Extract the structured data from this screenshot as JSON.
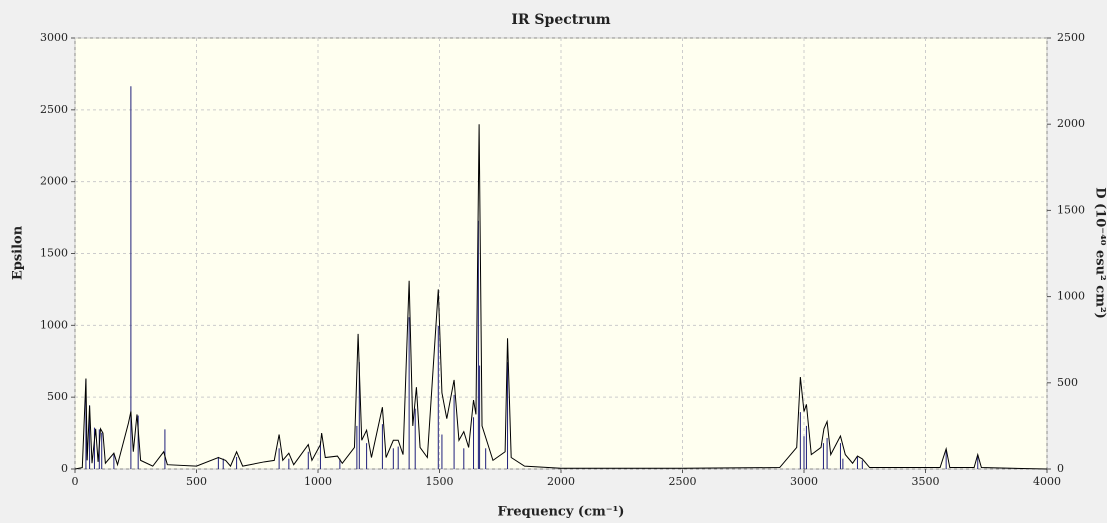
{
  "chart_data": {
    "type": "line",
    "title": "IR Spectrum",
    "x_label": "Frequency (cm⁻¹)",
    "y_label": "Epsilon",
    "y2_label": "D (10⁻⁴⁰ esu² cm²)",
    "xlim": [
      0,
      4000
    ],
    "xticks": [
      0,
      500,
      1000,
      1500,
      2000,
      2500,
      3000,
      3500,
      4000
    ],
    "ylim": [
      0,
      3000
    ],
    "yticks": [
      0,
      500,
      1000,
      1500,
      2000,
      2500,
      3000
    ],
    "y2lim": [
      0,
      2500
    ],
    "y2ticks": [
      0,
      500,
      1000,
      1500,
      2000,
      2500
    ],
    "grid": true,
    "series": [
      {
        "type": "line",
        "color": "#000000",
        "x": [
          0,
          30,
          45,
          50,
          60,
          70,
          85,
          95,
          105,
          115,
          125,
          160,
          175,
          220,
          230,
          240,
          255,
          270,
          320,
          365,
          380,
          500,
          590,
          620,
          640,
          665,
          690,
          780,
          820,
          840,
          855,
          880,
          900,
          960,
          975,
          1010,
          1015,
          1030,
          1080,
          1100,
          1150,
          1165,
          1180,
          1200,
          1220,
          1265,
          1280,
          1310,
          1330,
          1350,
          1375,
          1390,
          1405,
          1420,
          1450,
          1495,
          1510,
          1530,
          1560,
          1580,
          1600,
          1620,
          1640,
          1650,
          1663,
          1675,
          1690,
          1720,
          1770,
          1780,
          1795,
          1850,
          2000,
          2500,
          2900,
          2970,
          2985,
          3000,
          3010,
          3030,
          3070,
          3082,
          3095,
          3110,
          3150,
          3170,
          3200,
          3220,
          3240,
          3270,
          3560,
          3585,
          3600,
          3700,
          3715,
          3730,
          4000
        ],
        "values": [
          0,
          10,
          630,
          60,
          440,
          40,
          280,
          50,
          280,
          250,
          40,
          110,
          30,
          320,
          400,
          120,
          380,
          60,
          20,
          120,
          30,
          20,
          80,
          60,
          20,
          120,
          20,
          50,
          60,
          240,
          60,
          110,
          30,
          170,
          60,
          170,
          250,
          80,
          90,
          40,
          150,
          940,
          200,
          270,
          80,
          430,
          80,
          200,
          200,
          100,
          1310,
          300,
          570,
          150,
          80,
          1250,
          530,
          350,
          620,
          200,
          260,
          150,
          480,
          380,
          2400,
          300,
          220,
          60,
          120,
          910,
          80,
          20,
          5,
          5,
          10,
          150,
          640,
          400,
          450,
          100,
          150,
          280,
          330,
          100,
          230,
          100,
          40,
          90,
          70,
          10,
          10,
          140,
          10,
          10,
          100,
          10,
          0
        ]
      },
      {
        "type": "stem",
        "axis": "y2",
        "color": "#1f1f7a",
        "x": [
          45,
          60,
          80,
          100,
          110,
          160,
          230,
          260,
          370,
          590,
          610,
          665,
          840,
          880,
          960,
          1010,
          1090,
          1160,
          1170,
          1200,
          1265,
          1310,
          1330,
          1375,
          1400,
          1495,
          1510,
          1560,
          1600,
          1640,
          1660,
          1665,
          1690,
          1780,
          2985,
          3000,
          3010,
          3080,
          3095,
          3150,
          3160,
          3220,
          3240,
          3585,
          3715
        ],
        "values": [
          520,
          370,
          240,
          230,
          210,
          90,
          2220,
          310,
          230,
          70,
          60,
          70,
          120,
          60,
          100,
          160,
          60,
          250,
          620,
          150,
          260,
          120,
          130,
          880,
          350,
          830,
          200,
          430,
          120,
          300,
          1440,
          600,
          120,
          620,
          330,
          190,
          250,
          150,
          180,
          150,
          60,
          70,
          50,
          110,
          80
        ]
      }
    ]
  }
}
